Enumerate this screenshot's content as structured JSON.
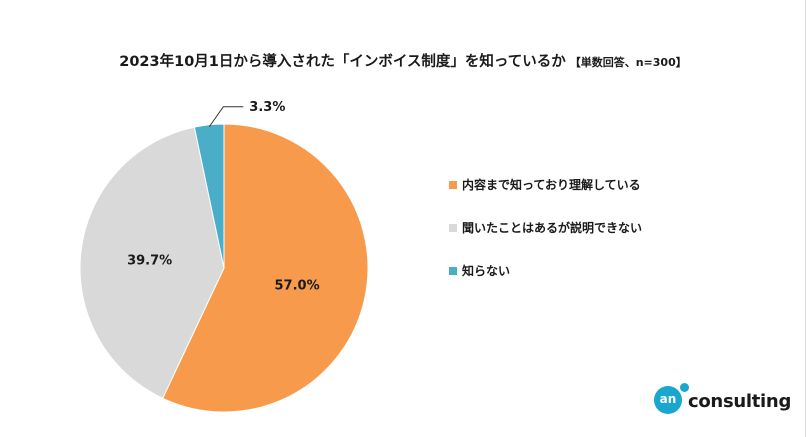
{
  "title": {
    "main": "2023年10月1日から導入された「インボイス制度」を知っているか",
    "sub": "【単数回答、n=300】"
  },
  "chart_data": {
    "type": "pie",
    "categories": [
      "内容まで知っており理解している",
      "聞いたことはあるが説明できない",
      "知らない"
    ],
    "values": [
      57.0,
      39.7,
      3.3
    ],
    "value_labels": [
      "57.0%",
      "39.7%",
      "3.3%"
    ],
    "colors": [
      "#f79a4b",
      "#d9d9d9",
      "#4aaec8"
    ],
    "start_angle": "12 o'clock",
    "direction": "clockwise",
    "legend_position": "right"
  },
  "logo": {
    "mark": "an",
    "text": "consulting",
    "color": "#1aa7cf"
  }
}
